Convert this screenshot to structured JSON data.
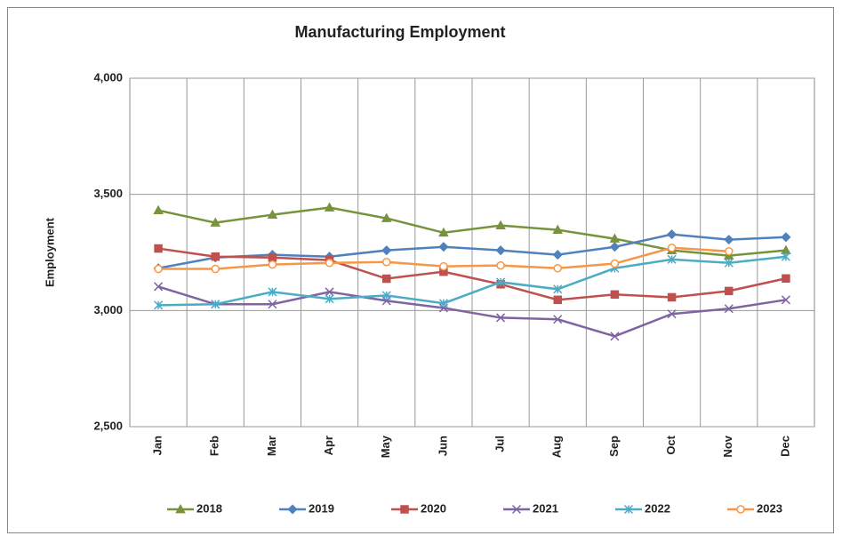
{
  "chart_data": {
    "type": "line",
    "title": "Manufacturing Employment",
    "y_label": "Employment",
    "categories": [
      "Jan",
      "Feb",
      "Mar",
      "Apr",
      "May",
      "Jun",
      "Jul",
      "Aug",
      "Sep",
      "Oct",
      "Nov",
      "Dec"
    ],
    "ylim": [
      2500,
      4000
    ],
    "yticks": [
      {
        "value": 2500,
        "label": "2,500"
      },
      {
        "value": 3000,
        "label": "3,000"
      },
      {
        "value": 3500,
        "label": "3,500"
      },
      {
        "value": 4000,
        "label": "4,000"
      }
    ],
    "grid": true,
    "legend": "bottom",
    "series": [
      {
        "name": "2018",
        "color": "#77933c",
        "marker": "triangle",
        "values": [
          3431,
          3378,
          3412,
          3443,
          3397,
          3335,
          3366,
          3347,
          3309,
          3259,
          3236,
          3259
        ]
      },
      {
        "name": "2019",
        "color": "#4f81bd",
        "marker": "diamond",
        "values": [
          3182,
          3228,
          3240,
          3232,
          3259,
          3274,
          3259,
          3240,
          3274,
          3328,
          3305,
          3316
        ]
      },
      {
        "name": "2020",
        "color": "#c0504d",
        "marker": "square",
        "values": [
          3267,
          3232,
          3228,
          3217,
          3137,
          3167,
          3113,
          3046,
          3069,
          3057,
          3084,
          3138
        ]
      },
      {
        "name": "2021",
        "color": "#8064a2",
        "marker": "x",
        "values": [
          3103,
          3027,
          3027,
          3080,
          3042,
          3011,
          2969,
          2962,
          2889,
          2985,
          3008,
          3046
        ]
      },
      {
        "name": "2022",
        "color": "#4bacc6",
        "marker": "star",
        "values": [
          3023,
          3027,
          3080,
          3050,
          3065,
          3031,
          3122,
          3092,
          3182,
          3220,
          3205,
          3232
        ]
      },
      {
        "name": "2023",
        "color": "#f79646",
        "marker": "circle",
        "values": [
          3179,
          3179,
          3198,
          3205,
          3209,
          3190,
          3194,
          3182,
          3202,
          3270,
          3255,
          null
        ]
      }
    ]
  }
}
